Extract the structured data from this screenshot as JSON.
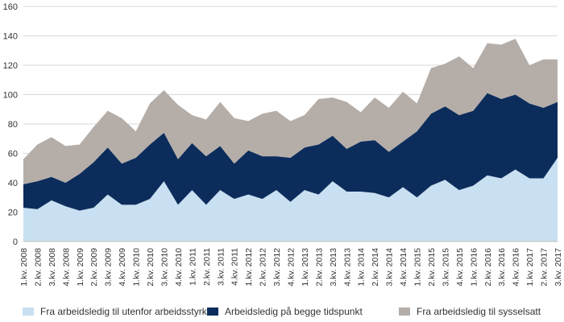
{
  "chart_data": {
    "type": "area",
    "stacked": true,
    "categories": [
      "1.kv. 2008",
      "2.kv. 2008",
      "3.kv. 2008",
      "4.kv. 2008",
      "1.kv. 2009",
      "2.kv. 2009",
      "3.kv. 2009",
      "4.kv. 2009",
      "1.kv. 2010",
      "2.kv. 2010",
      "3.kv. 2010",
      "4.kv. 2010",
      "1.kv. 2011",
      "2.kv. 2011",
      "3.kv. 2011",
      "4.kv. 2011",
      "1.kv. 2012",
      "2.kv. 2012",
      "3.kv. 2012",
      "4.kv. 2012",
      "1.kv. 2013",
      "2.kv. 2013",
      "3.kv. 2013",
      "4.kv. 2013",
      "1.kv. 2014",
      "2.kv. 2014",
      "3.kv. 2014",
      "4.kv. 2014",
      "1.kv. 2015",
      "2.kv. 2015",
      "3.kv. 2015",
      "4.kv. 2015",
      "1.kv. 2016",
      "2.kv. 2016",
      "3.kv. 2016",
      "4.kv. 2016",
      "1.kv. 2017",
      "2.kv. 2017",
      "3.kv. 2017"
    ],
    "series": [
      {
        "name": "Fra arbeidsledig til utenfor arbeidsstyrken",
        "color": "#c9e0f2",
        "values": [
          23,
          22,
          28,
          24,
          21,
          23,
          32,
          25,
          25,
          29,
          41,
          25,
          35,
          25,
          35,
          29,
          32,
          29,
          35,
          27,
          35,
          32,
          41,
          34,
          34,
          33,
          30,
          37,
          30,
          38,
          42,
          35,
          38,
          45,
          43,
          49,
          43,
          43,
          57
        ]
      },
      {
        "name": "Arbeidsledig på begge tidspunkt",
        "color": "#0c2d5c",
        "values": [
          16,
          19,
          16,
          16,
          25,
          31,
          32,
          28,
          32,
          37,
          33,
          31,
          32,
          33,
          30,
          24,
          30,
          29,
          23,
          30,
          29,
          34,
          31,
          29,
          34,
          36,
          31,
          31,
          45,
          49,
          50,
          51,
          51,
          56,
          54,
          51,
          51,
          48,
          38
        ]
      },
      {
        "name": "Fra arbeidsledig til sysselsatt",
        "color": "#b5ada8",
        "values": [
          17,
          25,
          27,
          25,
          20,
          24,
          25,
          31,
          18,
          28,
          29,
          37,
          19,
          25,
          30,
          31,
          20,
          29,
          31,
          25,
          22,
          31,
          26,
          32,
          20,
          29,
          30,
          34,
          19,
          31,
          29,
          40,
          29,
          34,
          37,
          38,
          26,
          33,
          29
        ]
      }
    ],
    "ylim": [
      0,
      160
    ],
    "yticks": [
      0,
      20,
      40,
      60,
      80,
      100,
      120,
      140,
      160
    ],
    "grid": true,
    "legend": "bottom",
    "title": "",
    "xlabel": "",
    "ylabel": ""
  }
}
